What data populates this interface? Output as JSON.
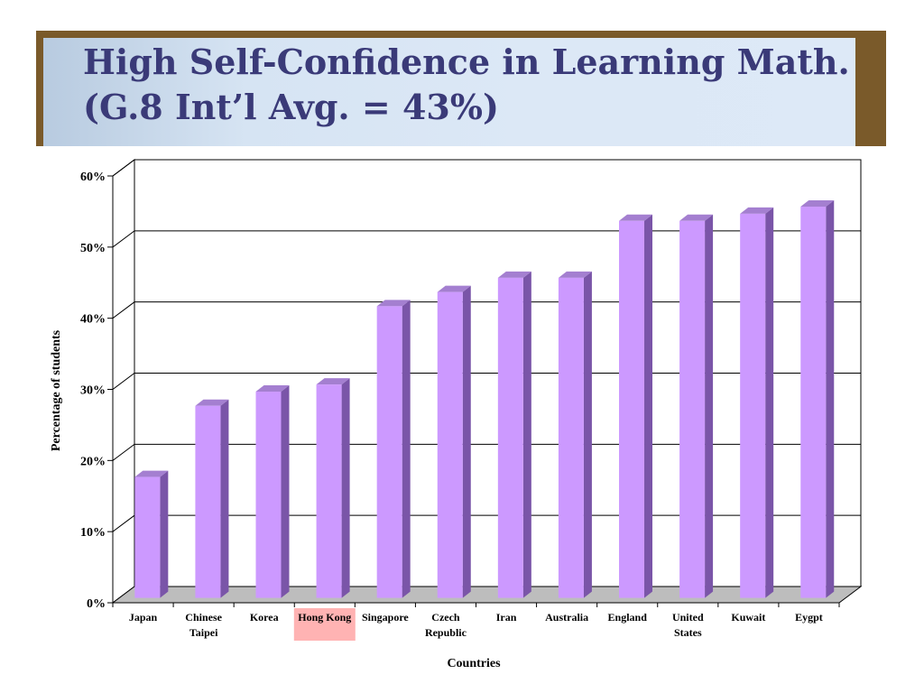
{
  "slide": {
    "title_line1": "High Self-Confidence in Learning Math.",
    "title_line2": "(G.8 Int’l Avg. = 43%)"
  },
  "chart_data": {
    "type": "bar",
    "title": "High Self-Confidence in Learning Math. (G.8 Int’l Avg. = 43%)",
    "xlabel": "Countries",
    "ylabel": "Percentage of students",
    "ylim": [
      0,
      60
    ],
    "yticks": [
      "0%",
      "10%",
      "20%",
      "30%",
      "40%",
      "50%",
      "60%"
    ],
    "categories": [
      [
        "Japan"
      ],
      [
        "Chinese",
        "Taipei"
      ],
      [
        "Korea"
      ],
      [
        "Hong Kong"
      ],
      [
        "Singapore"
      ],
      [
        "Czech",
        "Republic"
      ],
      [
        "Iran"
      ],
      [
        "Australia"
      ],
      [
        "England"
      ],
      [
        "United",
        "States"
      ],
      [
        "Kuwait"
      ],
      [
        "Eygpt"
      ]
    ],
    "values": [
      17,
      27,
      29,
      30,
      41,
      43,
      45,
      45,
      53,
      53,
      54,
      55
    ],
    "highlight_category": "Hong Kong",
    "grid": true,
    "colors": {
      "bar_front": "#cc99ff",
      "bar_side": "#7a55a8",
      "bar_top": "#a47fd0",
      "floor": "#bdbdbd",
      "highlight_bg": "#ffb3b3"
    }
  }
}
